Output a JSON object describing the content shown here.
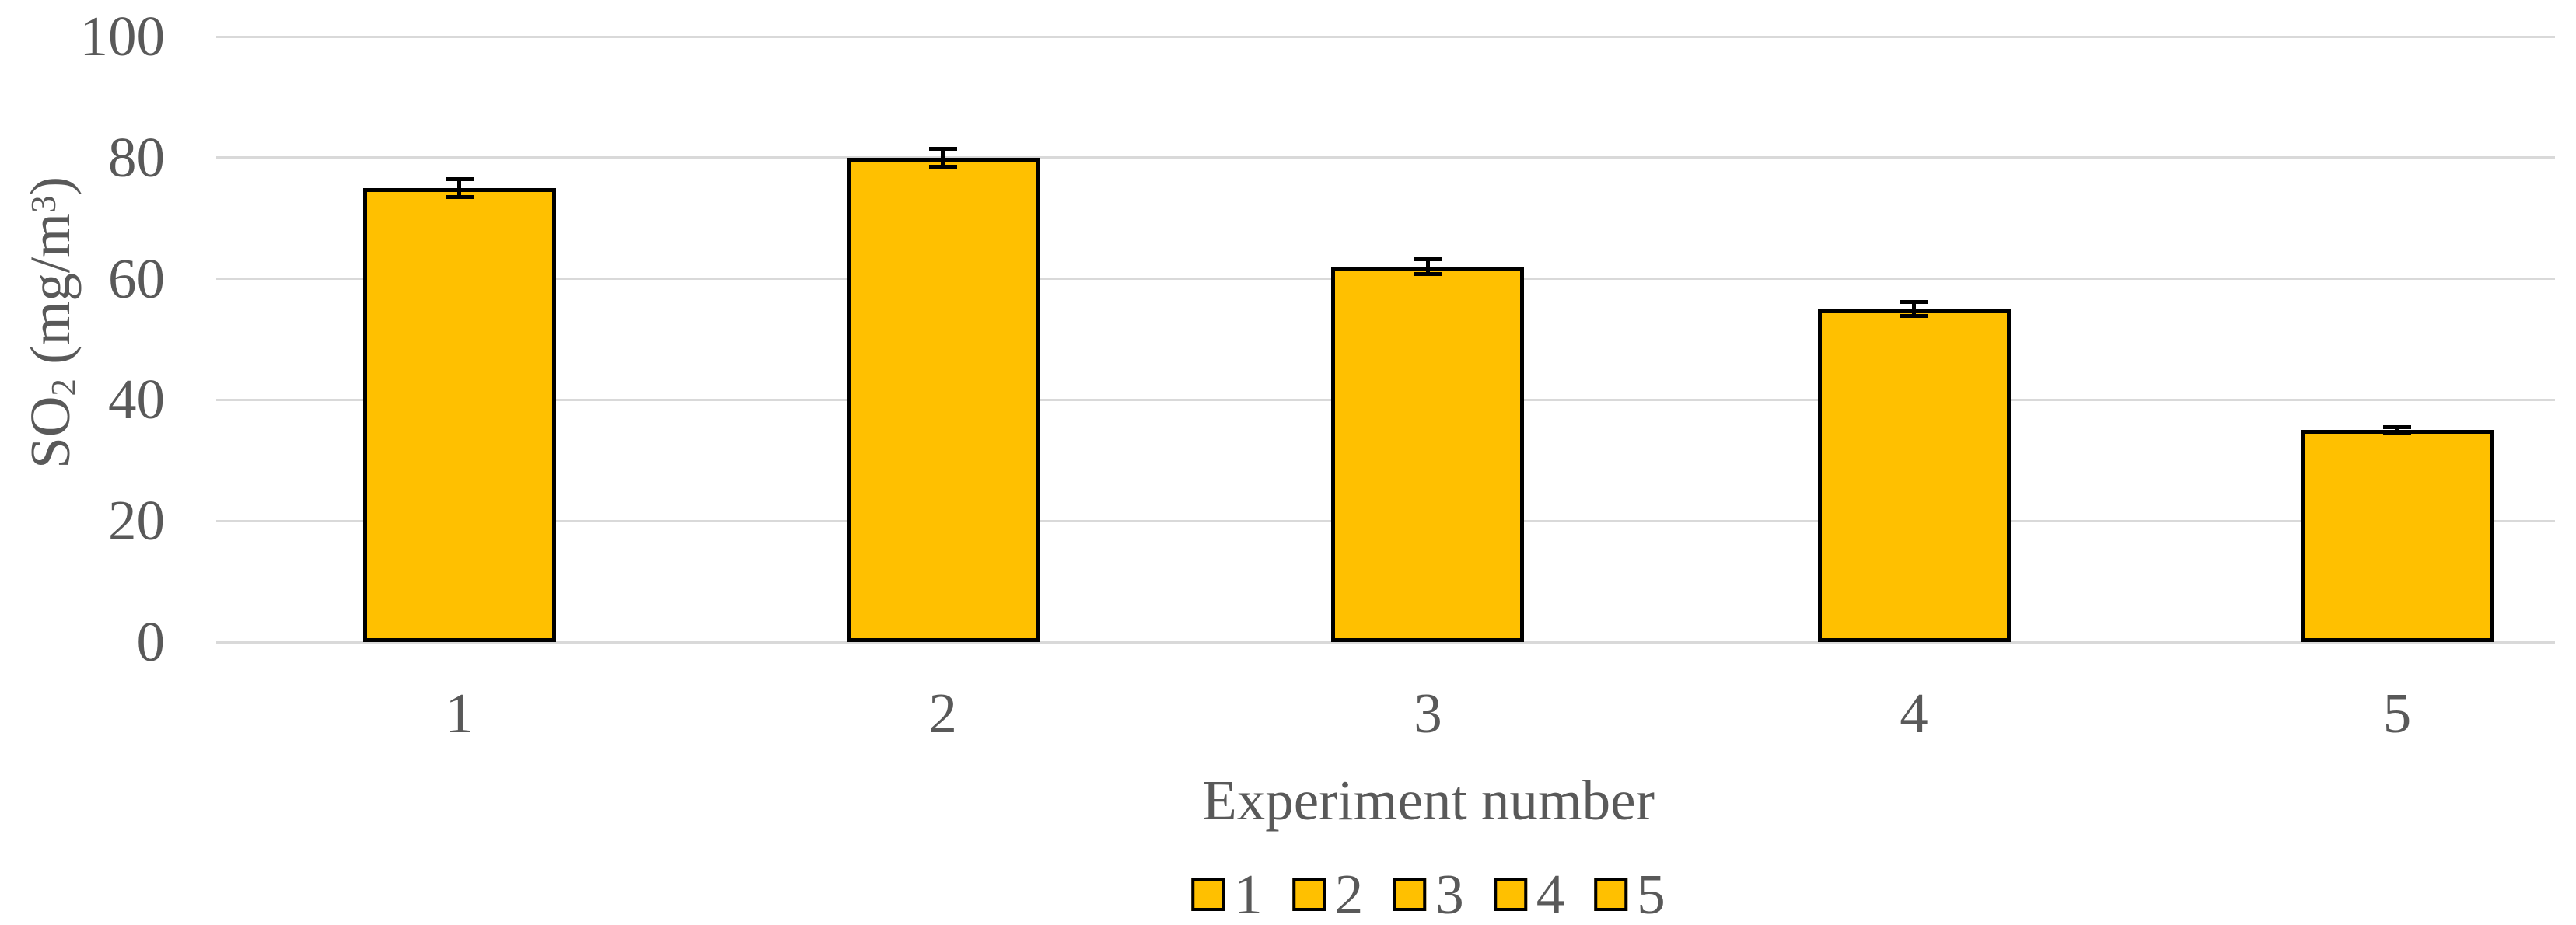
{
  "chart_data": {
    "type": "bar",
    "title": "",
    "categories": [
      "1",
      "2",
      "3",
      "4",
      "5"
    ],
    "values": [
      75,
      80,
      62,
      55,
      35
    ],
    "errors": [
      1.5,
      1.5,
      1.2,
      1.2,
      0.5
    ],
    "series": [
      {
        "name": "1",
        "category": "1",
        "value": 75,
        "error": 1.5
      },
      {
        "name": "2",
        "category": "2",
        "value": 80,
        "error": 1.5
      },
      {
        "name": "3",
        "category": "3",
        "value": 62,
        "error": 1.2
      },
      {
        "name": "4",
        "category": "4",
        "value": 55,
        "error": 1.2
      },
      {
        "name": "5",
        "category": "5",
        "value": 35,
        "error": 0.5
      }
    ],
    "xlabel": "Experiment number",
    "ylabel": "SO₂ (mg/m³)",
    "ylabel_parts": {
      "base": "SO",
      "sub": "2",
      "mid": " (mg/m",
      "sup": "3",
      "end": ")"
    },
    "ylim": [
      0,
      100
    ],
    "yticks": [
      0,
      20,
      40,
      60,
      80,
      100
    ],
    "grid": true,
    "legend_entries": [
      "1",
      "2",
      "3",
      "4",
      "5"
    ],
    "legend_position": "bottom",
    "error_bars": true,
    "colors": {
      "bar_fill": "#FFC000",
      "bar_border": "#000000",
      "gridline": "#D9D9D9",
      "text": "#595959",
      "error_bar": "#000000",
      "background": "#FFFFFF"
    },
    "layout": {
      "bar_center_fracs": [
        0.104,
        0.3107,
        0.5181,
        0.7259,
        0.9325
      ]
    }
  }
}
